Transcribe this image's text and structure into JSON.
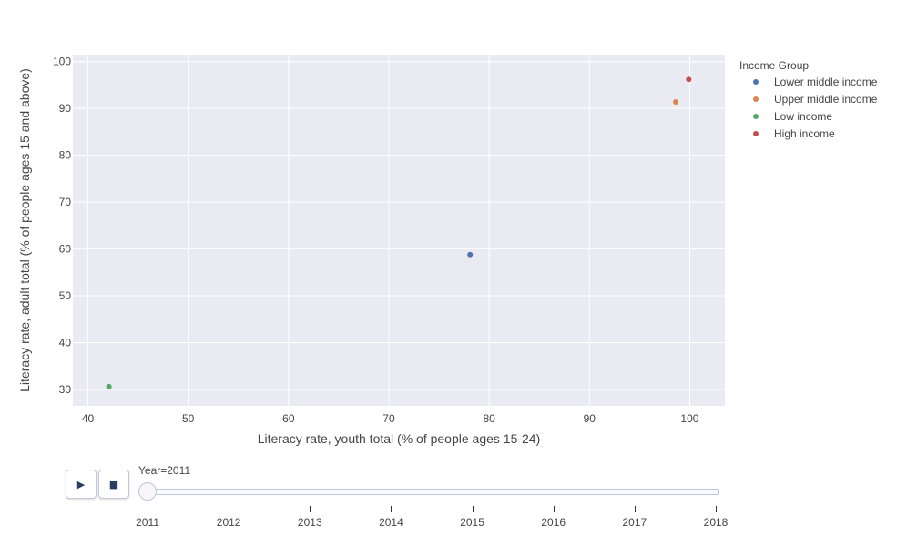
{
  "chart_data": {
    "type": "scatter",
    "xlabel": "Literacy rate, youth total (% of people ages 15-24)",
    "ylabel": "Literacy rate, adult total (% of people ages 15 and above)",
    "xlim": [
      38.5,
      103.5
    ],
    "ylim": [
      26.5,
      101.5
    ],
    "x_ticks": [
      "40",
      "50",
      "60",
      "70",
      "80",
      "90",
      "100"
    ],
    "y_ticks": [
      "30",
      "40",
      "50",
      "60",
      "70",
      "80",
      "90",
      "100"
    ],
    "grid": true,
    "legend": {
      "title": "Income Group",
      "placement": "top-right, outside plot"
    },
    "series": [
      {
        "name": "Lower middle income",
        "color": "#4c72b0",
        "points": [
          {
            "x": 78.1,
            "y": 58.8
          }
        ]
      },
      {
        "name": "Upper middle income",
        "color": "#dd8452",
        "points": [
          {
            "x": 98.6,
            "y": 91.4
          }
        ]
      },
      {
        "name": "Low income",
        "color": "#55a868",
        "points": [
          {
            "x": 42.1,
            "y": 30.6
          }
        ]
      },
      {
        "name": "High income",
        "color": "#c44e52",
        "points": [
          {
            "x": 99.9,
            "y": 96.2
          }
        ]
      }
    ]
  },
  "slider": {
    "label": "Year=2011",
    "current": "2011",
    "ticks": [
      "2011",
      "2012",
      "2013",
      "2014",
      "2015",
      "2016",
      "2017",
      "2018"
    ]
  },
  "controls": {
    "play_label": "▶",
    "stop_label": "■"
  }
}
